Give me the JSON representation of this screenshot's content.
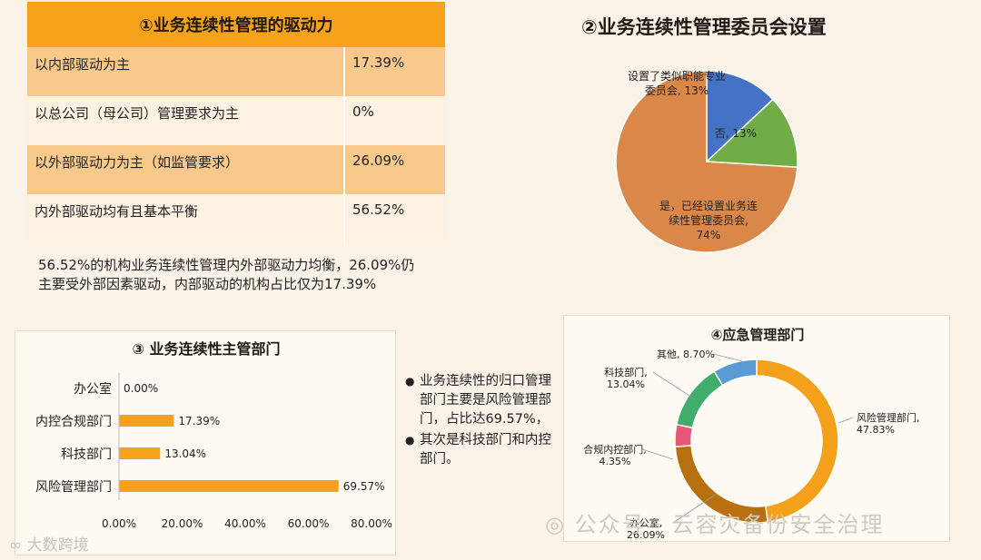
{
  "panel1": {
    "title": "①业务连续性管理的驱动力",
    "rows": [
      {
        "label": "以内部驱动为主",
        "value": "17.39%"
      },
      {
        "label": "以总公司（母公司）管理要求为主",
        "value": "0%"
      },
      {
        "label": "以外部驱动力为主（如监管要求）",
        "value": "26.09%"
      },
      {
        "label": "内外部驱动均有且基本平衡",
        "value": "56.52%"
      }
    ],
    "summary_line1": "56.52%的机构业务连续性管理内外部驱动力均衡，26.09%仍",
    "summary_line2": "主要受外部因素驱动，内部驱动的机构占比仅为17.39%"
  },
  "notes": [
    "业务连续性的归口管理部门主要是风险管理部门，占比达69.57%，",
    "其次是科技部门和内控部门。"
  ],
  "watermark_left": "大数跨境",
  "watermark_right": "公众号 · 云容灾备份安全治理",
  "chart_data": [
    {
      "type": "pie",
      "title": "②业务连续性管理委员会设置",
      "slices": [
        {
          "label_lines": [
            "设置了类似职能专业",
            "委员会, 13%"
          ],
          "value": 13,
          "color": "#4472c4"
        },
        {
          "label_lines": [
            "否, 13%"
          ],
          "value": 13,
          "color": "#70ad47"
        },
        {
          "label_lines": [
            "是，已经设置业务连",
            "续性管理委员会,",
            "74%"
          ],
          "value": 74,
          "color": "#d9884a"
        }
      ]
    },
    {
      "type": "bar",
      "orientation": "horizontal",
      "title": "③ 业务连续性主管部门",
      "categories": [
        "办公室",
        "内控合规部门",
        "科技部门",
        "风险管理部门"
      ],
      "values": [
        0.0,
        17.39,
        13.04,
        69.57
      ],
      "value_labels": [
        "0.00%",
        "17.39%",
        "13.04%",
        "69.57%"
      ],
      "xlim": [
        0,
        80
      ],
      "ticks": [
        "0.00%",
        "20.00%",
        "40.00%",
        "60.00%",
        "80.00%"
      ],
      "color": "#f7a21b"
    },
    {
      "type": "pie",
      "donut": true,
      "title": "④应急管理部门",
      "slices": [
        {
          "label_lines": [
            "风险管理部门,",
            "47.83%"
          ],
          "value": 47.83,
          "color": "#f5a01a"
        },
        {
          "label_lines": [
            "办公室,",
            "26.09%"
          ],
          "value": 26.09,
          "color": "#b8700e"
        },
        {
          "label_lines": [
            "合规内控部门,",
            "4.35%"
          ],
          "value": 4.35,
          "color": "#e8577a"
        },
        {
          "label_lines": [
            "科技部门,",
            "13.04%"
          ],
          "value": 13.04,
          "color": "#3fae6a"
        },
        {
          "label_lines": [
            "其他, 8.70%"
          ],
          "value": 8.7,
          "color": "#5b9bd5"
        }
      ]
    }
  ]
}
